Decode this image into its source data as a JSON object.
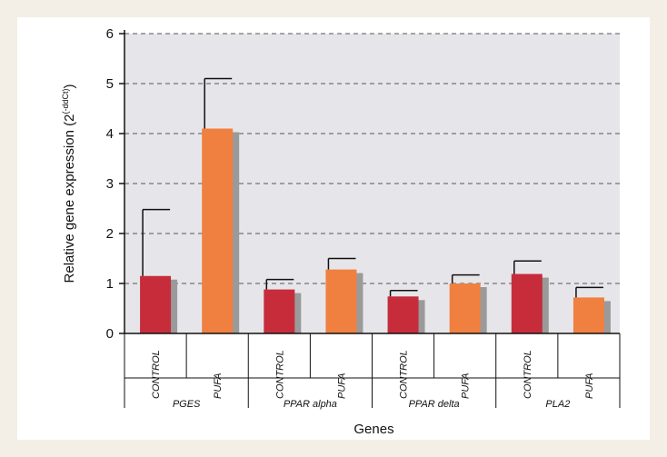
{
  "chart_data": {
    "type": "bar",
    "ylabel": "Relative gene expression (2",
    "ylabel_sup": "(-ddCt)",
    "ylabel_close": ")",
    "xlabel": "Genes",
    "ylim": [
      0,
      6
    ],
    "yticks": [
      0,
      1,
      2,
      3,
      4,
      5,
      6
    ],
    "ytick_labels": [
      "0",
      "1",
      "2",
      "3",
      "4",
      "5",
      "6"
    ],
    "grid": "horizontal-dashed",
    "plot_background": "#e6e6ea",
    "colors": {
      "CONTROL": "#c72c3b",
      "PUFA": "#f08040",
      "shadow": "#9a9a9a",
      "grid": "#555555"
    },
    "groups": [
      {
        "gene": "PGES",
        "bars": [
          {
            "condition": "CONTROL",
            "value": 1.15,
            "error": 1.33
          },
          {
            "condition": "PUFA",
            "value": 4.1,
            "error": 1.0
          }
        ]
      },
      {
        "gene": "PPAR alpha",
        "bars": [
          {
            "condition": "CONTROL",
            "value": 0.88,
            "error": 0.2
          },
          {
            "condition": "PUFA",
            "value": 1.28,
            "error": 0.22
          }
        ]
      },
      {
        "gene": "PPAR delta",
        "bars": [
          {
            "condition": "CONTROL",
            "value": 0.74,
            "error": 0.12
          },
          {
            "condition": "PUFA",
            "value": 1.0,
            "error": 0.17
          }
        ]
      },
      {
        "gene": "PLA2",
        "bars": [
          {
            "condition": "CONTROL",
            "value": 1.19,
            "error": 0.26
          },
          {
            "condition": "PUFA",
            "value": 0.72,
            "error": 0.2
          }
        ]
      }
    ]
  }
}
